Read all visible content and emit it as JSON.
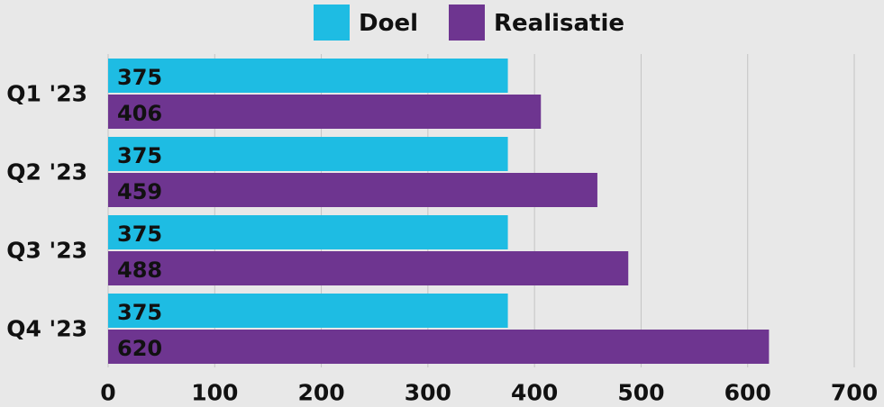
{
  "chart_data": {
    "type": "bar",
    "orientation": "horizontal",
    "categories": [
      "Q1 '23",
      "Q2 '23",
      "Q3 '23",
      "Q4 '23"
    ],
    "series": [
      {
        "name": "Doel",
        "color": "#1ebce3",
        "values": [
          375,
          375,
          375,
          375
        ]
      },
      {
        "name": "Realisatie",
        "color": "#6e3590",
        "values": [
          406,
          459,
          488,
          620
        ]
      }
    ],
    "xlim": [
      0,
      700
    ],
    "xticks": [
      0,
      100,
      200,
      300,
      400,
      500,
      600,
      700
    ],
    "grid": true,
    "legend": "top"
  }
}
